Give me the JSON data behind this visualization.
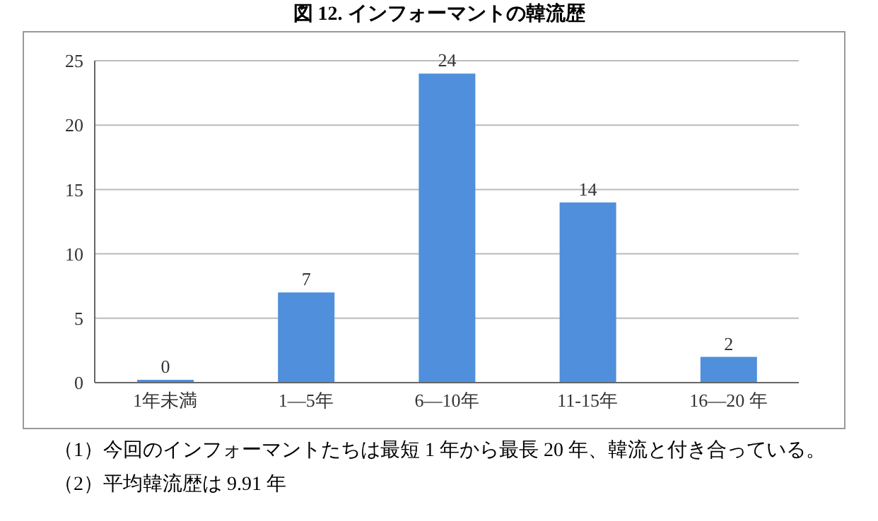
{
  "chart_data": {
    "type": "bar",
    "title": "図 12. インフォーマントの韓流歴",
    "categories": [
      "1年未満",
      "1—5年",
      "6—10年",
      "11-15年",
      "16—20 年"
    ],
    "values": [
      0,
      7,
      24,
      14,
      2
    ],
    "color": "#4f8fdb",
    "ylim": [
      0,
      25
    ],
    "yticks": [
      0,
      5,
      10,
      15,
      20,
      25
    ],
    "grid": "y",
    "data_labels": true,
    "annotations": [
      "（1）今回のインフォーマントたちは最短 1 年から最長 20 年、韓流と付き合っている。",
      "（2）平均韓流歴は 9.91 年"
    ]
  }
}
